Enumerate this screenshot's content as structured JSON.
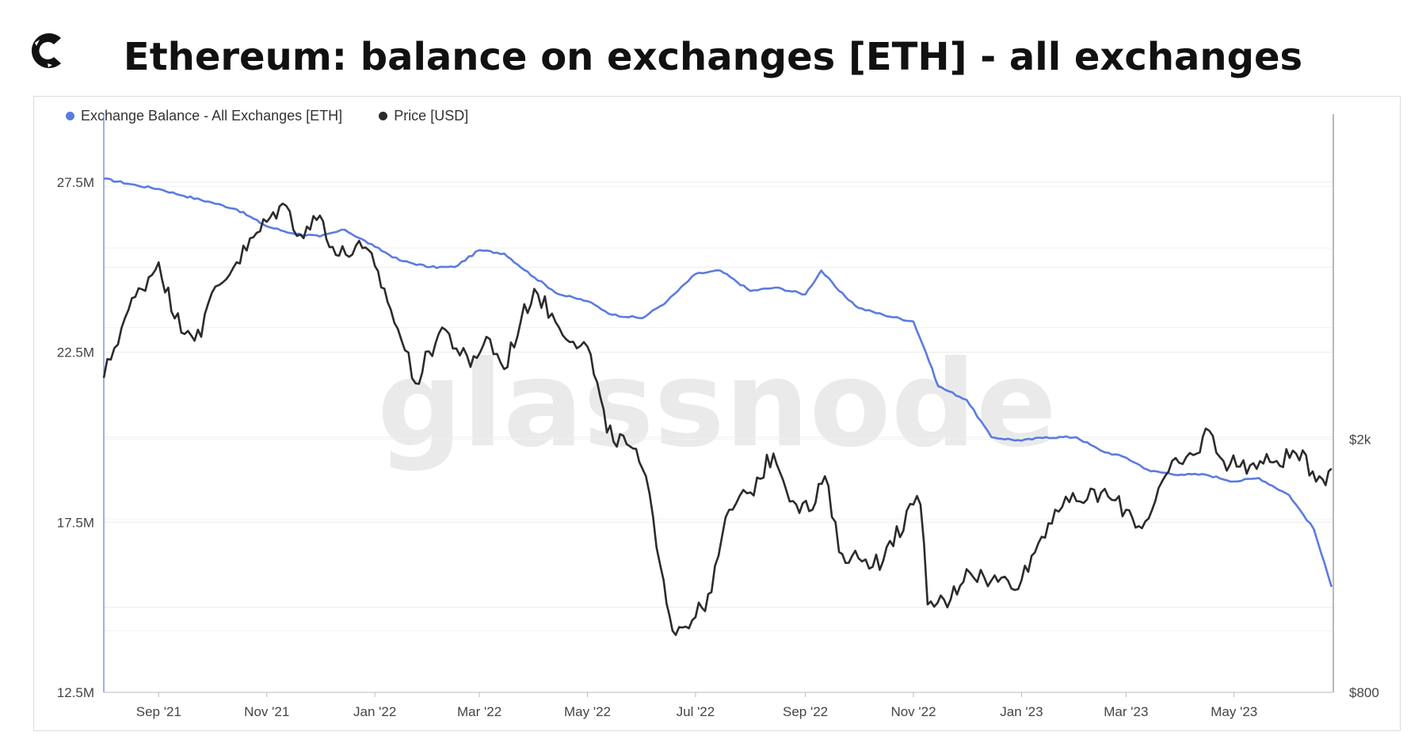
{
  "header": {
    "title": "Ethereum: balance on exchanges [ETH] - all exchanges"
  },
  "watermark": "glassnode",
  "legend": {
    "items": [
      {
        "label": "Exchange Balance - All Exchanges [ETH]",
        "color": "#5b7be0"
      },
      {
        "label": "Price [USD]",
        "color": "#2b2b2b"
      }
    ]
  },
  "chart_data": {
    "type": "line",
    "x_tick_labels": [
      "Sep '21",
      "Nov '21",
      "Jan '22",
      "Mar '22",
      "May '22",
      "Jul '22",
      "Sep '22",
      "Nov '22",
      "Jan '23",
      "Mar '23",
      "May '23"
    ],
    "left_axis": {
      "ticks": [
        "27.5M",
        "22.5M",
        "17.5M",
        "12.5M"
      ],
      "tick_values": [
        27.5,
        22.5,
        17.5,
        12.5
      ],
      "range": [
        12.5,
        29.5
      ]
    },
    "right_axis": {
      "ticks": [
        "$2k",
        "$800"
      ],
      "tick_values": [
        2000,
        800
      ],
      "scale": "log",
      "range": [
        800,
        6500
      ]
    },
    "series": [
      {
        "name": "Exchange Balance - All Exchanges [ETH]",
        "axis": "left",
        "color": "#5b7be0",
        "x": [
          "2021-08-01",
          "2021-08-20",
          "2021-09-01",
          "2021-09-15",
          "2021-10-01",
          "2021-10-15",
          "2021-11-01",
          "2021-11-15",
          "2021-12-01",
          "2021-12-15",
          "2022-01-01",
          "2022-01-15",
          "2022-02-01",
          "2022-02-15",
          "2022-03-01",
          "2022-03-15",
          "2022-04-01",
          "2022-04-15",
          "2022-05-01",
          "2022-05-15",
          "2022-06-01",
          "2022-06-15",
          "2022-07-01",
          "2022-07-15",
          "2022-08-01",
          "2022-08-15",
          "2022-09-01",
          "2022-09-10",
          "2022-09-20",
          "2022-10-01",
          "2022-10-15",
          "2022-11-01",
          "2022-11-08",
          "2022-11-15",
          "2022-12-01",
          "2022-12-15",
          "2023-01-01",
          "2023-01-15",
          "2023-02-01",
          "2023-02-15",
          "2023-03-01",
          "2023-03-15",
          "2023-04-01",
          "2023-04-15",
          "2023-05-01",
          "2023-05-15",
          "2023-06-01",
          "2023-06-15",
          "2023-06-25"
        ],
        "values": [
          27.6,
          27.4,
          27.3,
          27.1,
          26.9,
          26.7,
          26.2,
          26.0,
          25.9,
          26.1,
          25.6,
          25.2,
          25.0,
          25.0,
          25.5,
          25.4,
          24.7,
          24.2,
          24.0,
          23.6,
          23.5,
          24.0,
          24.8,
          24.9,
          24.3,
          24.4,
          24.2,
          24.9,
          24.3,
          23.8,
          23.6,
          23.4,
          22.5,
          21.5,
          21.1,
          20.0,
          19.9,
          20.0,
          20.0,
          19.6,
          19.4,
          19.0,
          18.9,
          18.9,
          18.7,
          18.8,
          18.3,
          17.3,
          15.6
        ]
      },
      {
        "name": "Price [USD]",
        "axis": "right",
        "color": "#2b2b2b",
        "x": [
          "2021-08-01",
          "2021-08-15",
          "2021-09-01",
          "2021-09-10",
          "2021-09-25",
          "2021-10-01",
          "2021-10-15",
          "2021-11-01",
          "2021-11-10",
          "2021-11-20",
          "2021-12-01",
          "2021-12-10",
          "2021-12-25",
          "2022-01-01",
          "2022-01-10",
          "2022-01-24",
          "2022-02-08",
          "2022-02-24",
          "2022-03-05",
          "2022-03-15",
          "2022-04-01",
          "2022-04-15",
          "2022-05-01",
          "2022-05-12",
          "2022-05-25",
          "2022-06-01",
          "2022-06-13",
          "2022-06-18",
          "2022-07-01",
          "2022-07-10",
          "2022-07-20",
          "2022-08-01",
          "2022-08-14",
          "2022-08-25",
          "2022-09-05",
          "2022-09-12",
          "2022-09-20",
          "2022-10-01",
          "2022-10-15",
          "2022-11-01",
          "2022-11-05",
          "2022-11-09",
          "2022-11-22",
          "2022-12-01",
          "2022-12-15",
          "2023-01-01",
          "2023-01-20",
          "2023-02-01",
          "2023-02-15",
          "2023-03-01",
          "2023-03-10",
          "2023-03-25",
          "2023-04-10",
          "2023-04-15",
          "2023-04-25",
          "2023-05-10",
          "2023-05-25",
          "2023-06-05",
          "2023-06-20",
          "2023-06-25"
        ],
        "values": [
          2500,
          3200,
          3800,
          3100,
          2900,
          3400,
          3800,
          4400,
          4700,
          4200,
          4500,
          3900,
          4000,
          3750,
          3200,
          2450,
          3000,
          2600,
          2900,
          2580,
          3450,
          3000,
          2800,
          2050,
          1950,
          1800,
          1200,
          1000,
          1050,
          1150,
          1550,
          1650,
          1900,
          1600,
          1550,
          1750,
          1330,
          1300,
          1290,
          1580,
          1580,
          1100,
          1120,
          1250,
          1200,
          1200,
          1550,
          1600,
          1650,
          1550,
          1450,
          1780,
          1900,
          2080,
          1850,
          1820,
          1850,
          1900,
          1730,
          1800
        ]
      }
    ]
  }
}
